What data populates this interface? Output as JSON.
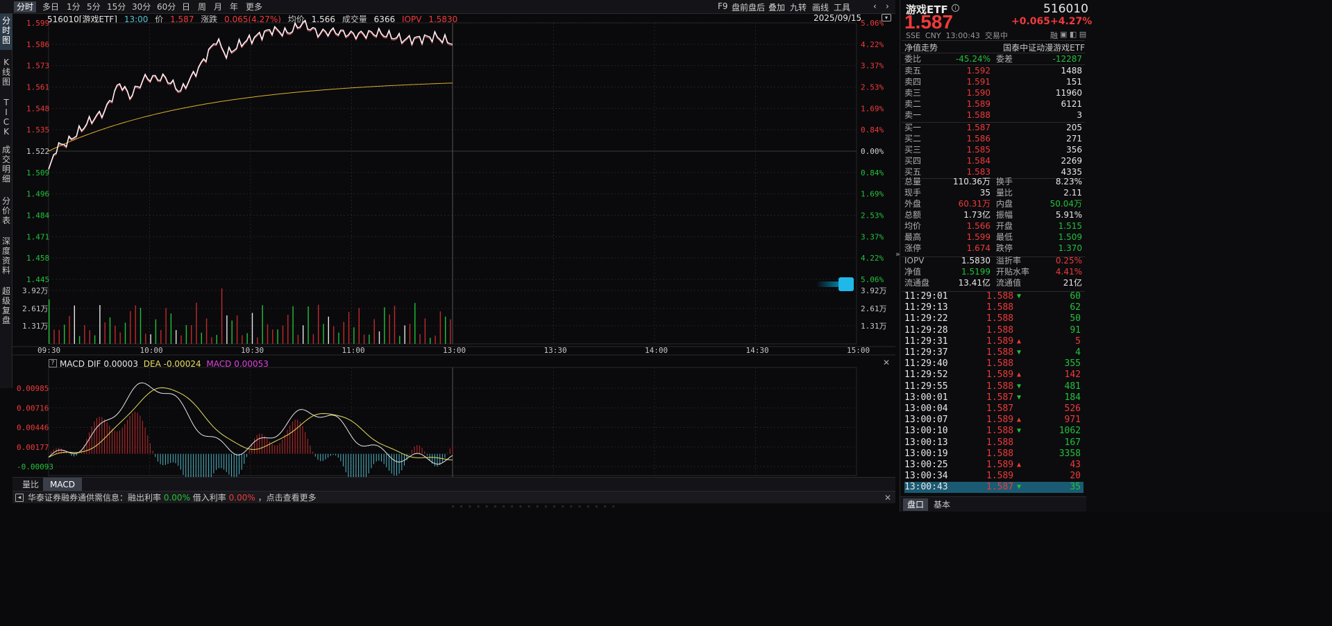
{
  "period_tabs": [
    "分时",
    "多日",
    "1分",
    "5分",
    "15分",
    "30分",
    "60分",
    "日",
    "周",
    "月",
    "年",
    "更多"
  ],
  "toolbar": [
    "F9",
    "盘前盘后",
    "叠加",
    "九转",
    "画线",
    "工具"
  ],
  "left_tabs": [
    "分时图",
    "K线图",
    "TICK",
    "成交明细",
    "分价表",
    "深度资料",
    "超级复盘"
  ],
  "info": {
    "code_name": "516010[游戏ETF]",
    "time": "13:00",
    "price_label": "价",
    "price": "1.587",
    "change_label": "涨跌",
    "change": "0.065(4.27%)",
    "avg_label": "均价",
    "avg": "1.566",
    "volume_label": "成交量",
    "volume": "6366",
    "iopv_label": "IOPV",
    "iopv": "1.5830",
    "date": "2025/09/15"
  },
  "price_axis": {
    "left": [
      "1.599",
      "1.586",
      "1.573",
      "1.561",
      "1.548",
      "1.535",
      "1.522",
      "1.509",
      "1.496",
      "1.484",
      "1.471",
      "1.458",
      "1.445"
    ],
    "right": [
      "5.06%",
      "4.22%",
      "3.37%",
      "2.53%",
      "1.69%",
      "0.84%",
      "0.00%",
      "0.84%",
      "1.69%",
      "2.53%",
      "3.37%",
      "4.22%",
      "5.06%"
    ]
  },
  "volume_axis": [
    "3.92万",
    "2.61万",
    "1.31万"
  ],
  "time_axis": [
    "09:30",
    "10:00",
    "10:30",
    "11:00",
    "13:00",
    "13:30",
    "14:00",
    "14:30",
    "15:00"
  ],
  "macd": {
    "title": "MACD",
    "dif_label": "DIF",
    "dif": "0.00003",
    "dea_label": "DEA",
    "dea": "-0.00024",
    "macd_label": "MACD",
    "macd": "0.00053",
    "axis": [
      "0.00985",
      "0.00716",
      "0.00446",
      "0.00177",
      "-0.00093"
    ]
  },
  "sub_tabs": [
    "量比",
    "MACD"
  ],
  "notice": {
    "prefix": "华泰证券融券通供需信息：融出利率",
    "rate1": "0.00%",
    "mid": "借入利率",
    "rate2": "0.00%",
    "suffix": "，点击查看更多"
  },
  "quote": {
    "name": "游戏ETF",
    "code": "516010",
    "price": "1.587",
    "change": "+0.065",
    "pct": "+4.27%",
    "meta": "SSE  CNY  13:00:43  交易中",
    "margin_tag": "融",
    "nav_trend_label": "净值走势",
    "full_name": "国泰中证动漫游戏ETF",
    "weibi_label": "委比",
    "weibi": "-45.24%",
    "weicha_label": "委差",
    "weicha": "-12287"
  },
  "asks": [
    {
      "label": "卖五",
      "price": "1.592",
      "vol": "1488"
    },
    {
      "label": "卖四",
      "price": "1.591",
      "vol": "151"
    },
    {
      "label": "卖三",
      "price": "1.590",
      "vol": "11960"
    },
    {
      "label": "卖二",
      "price": "1.589",
      "vol": "6121"
    },
    {
      "label": "卖一",
      "price": "1.588",
      "vol": "3"
    }
  ],
  "bids": [
    {
      "label": "买一",
      "price": "1.587",
      "vol": "205"
    },
    {
      "label": "买二",
      "price": "1.586",
      "vol": "271"
    },
    {
      "label": "买三",
      "price": "1.585",
      "vol": "356"
    },
    {
      "label": "买四",
      "price": "1.584",
      "vol": "2269"
    },
    {
      "label": "买五",
      "price": "1.583",
      "vol": "4335"
    }
  ],
  "stats": [
    {
      "l1": "总量",
      "v1": "110.36万",
      "c1": "white",
      "l2": "换手",
      "v2": "8.23%",
      "c2": "white"
    },
    {
      "l1": "现手",
      "v1": "35",
      "c1": "white",
      "l2": "量比",
      "v2": "2.11",
      "c2": "white"
    },
    {
      "l1": "外盘",
      "v1": "60.31万",
      "c1": "red",
      "l2": "内盘",
      "v2": "50.04万",
      "c2": "green"
    },
    {
      "l1": "总额",
      "v1": "1.73亿",
      "c1": "white",
      "l2": "振幅",
      "v2": "5.91%",
      "c2": "white"
    },
    {
      "l1": "均价",
      "v1": "1.566",
      "c1": "red",
      "l2": "开盘",
      "v2": "1.515",
      "c2": "green"
    },
    {
      "l1": "最高",
      "v1": "1.599",
      "c1": "red",
      "l2": "最低",
      "v2": "1.509",
      "c2": "green"
    },
    {
      "l1": "涨停",
      "v1": "1.674",
      "c1": "red",
      "l2": "跌停",
      "v2": "1.370",
      "c2": "green"
    }
  ],
  "stats2": [
    {
      "l1": "IOPV",
      "v1": "1.5830",
      "c1": "white",
      "l2": "溢折率",
      "v2": "0.25%",
      "c2": "red"
    },
    {
      "l1": "净值",
      "v1": "1.5199",
      "c1": "green",
      "l2": "开贴水率",
      "v2": "4.41%",
      "c2": "red"
    },
    {
      "l1": "流通盘",
      "v1": "13.41亿",
      "c1": "white",
      "l2": "流通值",
      "v2": "21亿",
      "c2": "white"
    }
  ],
  "ticks": [
    {
      "time": "11:29:01",
      "price": "1.588",
      "dir": "down",
      "vol": "60",
      "vc": "green"
    },
    {
      "time": "11:29:13",
      "price": "1.588",
      "dir": "",
      "vol": "62",
      "vc": "green"
    },
    {
      "time": "11:29:22",
      "price": "1.588",
      "dir": "",
      "vol": "50",
      "vc": "green"
    },
    {
      "time": "11:29:28",
      "price": "1.588",
      "dir": "",
      "vol": "91",
      "vc": "green"
    },
    {
      "time": "11:29:31",
      "price": "1.589",
      "dir": "up",
      "vol": "5",
      "vc": "red"
    },
    {
      "time": "11:29:37",
      "price": "1.588",
      "dir": "down",
      "vol": "4",
      "vc": "green"
    },
    {
      "time": "11:29:40",
      "price": "1.588",
      "dir": "",
      "vol": "355",
      "vc": "green"
    },
    {
      "time": "11:29:52",
      "price": "1.589",
      "dir": "up",
      "vol": "142",
      "vc": "red"
    },
    {
      "time": "11:29:55",
      "price": "1.588",
      "dir": "down",
      "vol": "481",
      "vc": "green"
    },
    {
      "time": "13:00:01",
      "price": "1.587",
      "dir": "down",
      "vol": "184",
      "vc": "green"
    },
    {
      "time": "13:00:04",
      "price": "1.587",
      "dir": "",
      "vol": "526",
      "vc": "red"
    },
    {
      "time": "13:00:07",
      "price": "1.589",
      "dir": "up",
      "vol": "971",
      "vc": "red"
    },
    {
      "time": "13:00:10",
      "price": "1.588",
      "dir": "down",
      "vol": "1062",
      "vc": "green"
    },
    {
      "time": "13:00:13",
      "price": "1.588",
      "dir": "",
      "vol": "167",
      "vc": "green"
    },
    {
      "time": "13:00:19",
      "price": "1.588",
      "dir": "",
      "vol": "3358",
      "vc": "green"
    },
    {
      "time": "13:00:25",
      "price": "1.589",
      "dir": "up",
      "vol": "43",
      "vc": "red"
    },
    {
      "time": "13:00:34",
      "price": "1.589",
      "dir": "",
      "vol": "20",
      "vc": "red"
    },
    {
      "time": "13:00:43",
      "price": "1.587",
      "dir": "down",
      "vol": "35",
      "vc": "green"
    }
  ],
  "right_tabs": [
    "盘口",
    "基本"
  ],
  "colors": {
    "up": "#f03a3a",
    "down": "#22c23a",
    "avg": "#e0b030",
    "price": "#ffffff",
    "dif": "#e8e8e8",
    "dea": "#e8e060",
    "macd": "#e040e0",
    "accent": "#1b5a73"
  }
}
